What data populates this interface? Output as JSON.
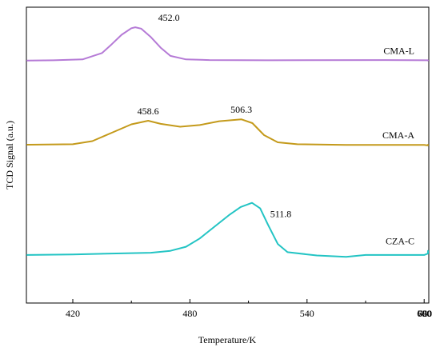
{
  "chart_data": {
    "type": "line",
    "title": "",
    "xlabel": "Temperature/K",
    "ylabel": "TCD Signal (a.u.)",
    "xlim": [
      380,
      780
    ],
    "ylim": [
      0,
      100
    ],
    "x_ticks": [
      420,
      480,
      540,
      600,
      660,
      720,
      780
    ],
    "grid": false,
    "legend": "none",
    "series": [
      {
        "name": "CMA-L",
        "color": "#b57ad6",
        "x": [
          382,
          410,
          425,
          435,
          440,
          445,
          450,
          452,
          455,
          460,
          465,
          470,
          478,
          490,
          520,
          580,
          640,
          700,
          760,
          777
        ],
        "y": [
          81.0,
          81.1,
          81.5,
          84.2,
          88.0,
          92.0,
          94.8,
          95.2,
          94.6,
          91.0,
          86.5,
          83.0,
          81.5,
          81.2,
          81.1,
          81.2,
          81.1,
          81.0,
          81.1,
          81.1
        ],
        "annotations": [
          {
            "x": 452.0,
            "y": 95.2,
            "text": "452.0"
          }
        ]
      },
      {
        "name": "CMA-A",
        "color": "#c49a1b",
        "x": [
          382,
          420,
          430,
          440,
          450,
          458.6,
          465,
          475,
          485,
          495,
          506.3,
          512,
          518,
          525,
          535,
          560,
          600,
          660,
          720,
          777
        ],
        "y": [
          53.0,
          53.2,
          54.5,
          58.0,
          61.5,
          63.0,
          61.7,
          60.5,
          61.2,
          62.8,
          63.6,
          62.0,
          57.0,
          54.0,
          53.2,
          52.9,
          52.9,
          52.7,
          52.9,
          53.0
        ],
        "annotations": [
          {
            "x": 458.6,
            "y": 63.0,
            "text": "458.6"
          },
          {
            "x": 506.3,
            "y": 63.6,
            "text": "506.3"
          }
        ]
      },
      {
        "name": "CZA-C",
        "color": "#23c4c4",
        "x": [
          382,
          420,
          460,
          470,
          478,
          485,
          492,
          500,
          506,
          511.8,
          516,
          520,
          525,
          530,
          545,
          560,
          570,
          600,
          660,
          720,
          780
        ],
        "y": [
          22.0,
          22.2,
          22.8,
          23.5,
          25.0,
          28.0,
          32.0,
          36.5,
          39.5,
          41.0,
          39.0,
          33.0,
          26.0,
          23.0,
          21.8,
          21.3,
          22.0,
          22.0,
          22.5,
          23.0,
          23.5
        ],
        "annotations": [
          {
            "x": 511.8,
            "y": 41.0,
            "text": "511.8"
          }
        ]
      }
    ]
  }
}
